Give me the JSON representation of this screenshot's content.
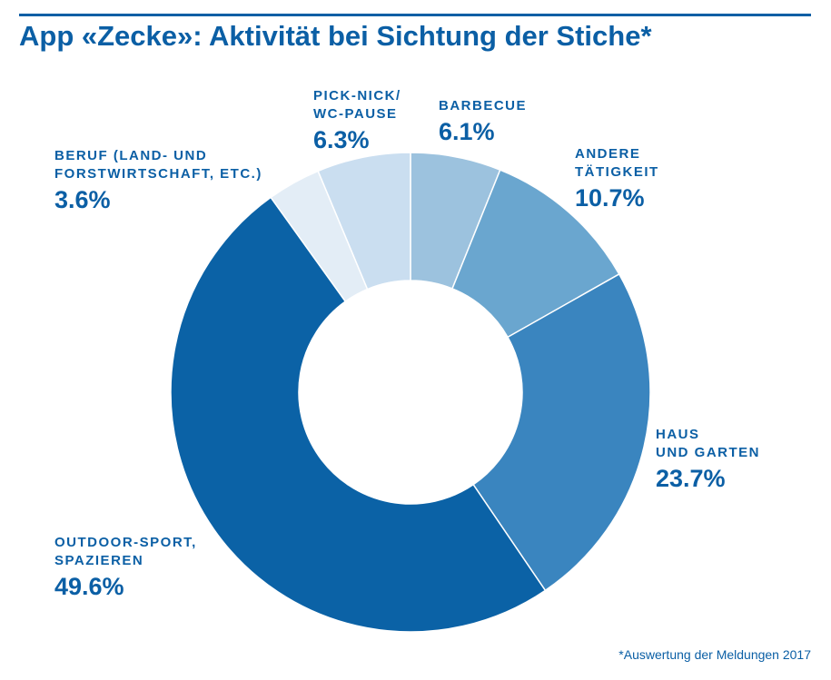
{
  "title": "App «Zecke»: Aktivität bei Sichtung der Stiche*",
  "footnote": "*Auswertung der Meldungen 2017",
  "chart_data": {
    "type": "pie",
    "donut": true,
    "title": "App «Zecke»: Aktivität bei Sichtung der Stiche*",
    "slices": [
      {
        "label": "BARBECUE",
        "value": 6.1,
        "value_label": "6.1%",
        "color": "#9cc2de"
      },
      {
        "label": "ANDERE TÄTIGKEIT",
        "value": 10.7,
        "value_label": "10.7%",
        "color": "#6aa6cf"
      },
      {
        "label": "HAUS UND GARTEN",
        "value": 23.7,
        "value_label": "23.7%",
        "color": "#3a85bf"
      },
      {
        "label": "OUTDOOR-SPORT, SPAZIEREN",
        "value": 49.6,
        "value_label": "49.6%",
        "color": "#0b62a6"
      },
      {
        "label": "BERUF (LAND- UND FORSTWIRTSCHAFT, ETC.)",
        "value": 3.6,
        "value_label": "3.6%",
        "color": "#e3edf6"
      },
      {
        "label": "PICK-NICK/ WC-PAUSE",
        "value": 6.3,
        "value_label": "6.3%",
        "color": "#cadef0"
      }
    ],
    "legend": "none"
  }
}
